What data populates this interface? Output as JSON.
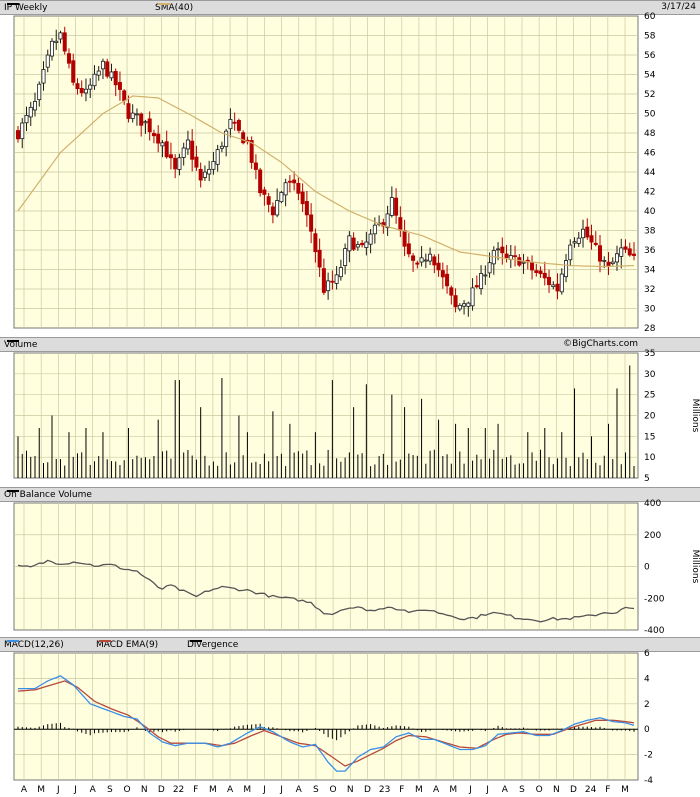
{
  "header": {
    "price_title": "IP Weekly",
    "sma_label": "SMA(40)",
    "date": "3/17/24",
    "volume_title": "Volume",
    "brand": "©BigCharts.com",
    "obv_title": "On Balance Volume",
    "macd_label": "MACD(12,26)",
    "macd_ema_label": "MACD EMA(9)",
    "divergence_label": "Divergence"
  },
  "colors": {
    "panel_bg": "#ffffe0",
    "grid": "#c9c9a0",
    "up_candle": "#1a1a1a",
    "down_candle": "#b30000",
    "sma": "#d2b06a",
    "volume_bar": "#000000",
    "obv_line": "#555555",
    "macd_line": "#3a8ee6",
    "macd_ema": "#b84a3a",
    "divergence": "#000000"
  },
  "chart_data": [
    {
      "type": "candlestick",
      "title": "IP Weekly",
      "overlay": "SMA(40)",
      "ylim": [
        28,
        60
      ],
      "yticks": [
        28,
        30,
        32,
        34,
        36,
        38,
        40,
        42,
        44,
        46,
        48,
        50,
        52,
        54,
        56,
        58,
        60
      ],
      "close_anchors": [
        [
          0,
          48
        ],
        [
          4,
          51
        ],
        [
          8,
          57
        ],
        [
          10,
          58
        ],
        [
          13,
          53
        ],
        [
          16,
          52
        ],
        [
          20,
          55
        ],
        [
          23,
          53
        ],
        [
          26,
          50
        ],
        [
          30,
          49
        ],
        [
          34,
          47
        ],
        [
          37,
          44
        ],
        [
          40,
          47
        ],
        [
          43,
          43
        ],
        [
          46,
          45
        ],
        [
          50,
          49
        ],
        [
          54,
          47
        ],
        [
          57,
          42
        ],
        [
          60,
          40
        ],
        [
          63,
          43
        ],
        [
          66,
          42
        ],
        [
          69,
          38
        ],
        [
          72,
          32
        ],
        [
          75,
          33
        ],
        [
          78,
          37
        ],
        [
          81,
          36
        ],
        [
          84,
          38
        ],
        [
          86,
          39
        ],
        [
          88,
          41
        ],
        [
          91,
          36
        ],
        [
          94,
          34
        ],
        [
          97,
          36
        ],
        [
          100,
          33
        ],
        [
          103,
          30
        ],
        [
          106,
          31
        ],
        [
          109,
          33
        ],
        [
          112,
          36
        ],
        [
          115,
          35
        ],
        [
          118,
          35
        ],
        [
          121,
          34
        ],
        [
          124,
          33
        ],
        [
          127,
          32
        ],
        [
          130,
          37
        ],
        [
          133,
          38
        ],
        [
          136,
          36
        ],
        [
          139,
          34
        ],
        [
          142,
          36
        ],
        [
          145,
          35
        ]
      ],
      "sma_anchors": [
        [
          0,
          40
        ],
        [
          10,
          46
        ],
        [
          20,
          50
        ],
        [
          27,
          51.8
        ],
        [
          33,
          51.6
        ],
        [
          40,
          50
        ],
        [
          48,
          48
        ],
        [
          55,
          47
        ],
        [
          62,
          45
        ],
        [
          70,
          42
        ],
        [
          78,
          40
        ],
        [
          86,
          38.5
        ],
        [
          95,
          37.5
        ],
        [
          104,
          35.8
        ],
        [
          112,
          35.3
        ],
        [
          120,
          34.8
        ],
        [
          130,
          34.4
        ],
        [
          138,
          34.3
        ],
        [
          145,
          34.4
        ]
      ]
    },
    {
      "type": "bar",
      "title": "Volume",
      "ylabel": "Millions",
      "ylim": [
        5,
        35
      ],
      "yticks": [
        5,
        10,
        15,
        20,
        25,
        30,
        35
      ],
      "base": 9,
      "spikes": [
        [
          0,
          15
        ],
        [
          5,
          17
        ],
        [
          8,
          20
        ],
        [
          12,
          16
        ],
        [
          16,
          17
        ],
        [
          20,
          16
        ],
        [
          26,
          17
        ],
        [
          33,
          19
        ],
        [
          37,
          28.5
        ],
        [
          38,
          28.5
        ],
        [
          43,
          22
        ],
        [
          48,
          29
        ],
        [
          52,
          20
        ],
        [
          54,
          16
        ],
        [
          60,
          21
        ],
        [
          64,
          18
        ],
        [
          70,
          16
        ],
        [
          74,
          28.5
        ],
        [
          79,
          22
        ],
        [
          82,
          27.5
        ],
        [
          88,
          25
        ],
        [
          91,
          22
        ],
        [
          95,
          24
        ],
        [
          99,
          19
        ],
        [
          103,
          18
        ],
        [
          106,
          17
        ],
        [
          110,
          17
        ],
        [
          113,
          18
        ],
        [
          120,
          16
        ],
        [
          124,
          17
        ],
        [
          128,
          16
        ],
        [
          131,
          26.5
        ],
        [
          135,
          15
        ],
        [
          139,
          18
        ],
        [
          141,
          26.5
        ],
        [
          144,
          32
        ]
      ]
    },
    {
      "type": "line",
      "title": "On Balance Volume",
      "ylabel": "Millions",
      "ylim": [
        -400,
        400
      ],
      "yticks": [
        -400,
        -200,
        0,
        200,
        400
      ],
      "anchors": [
        [
          0,
          0
        ],
        [
          3,
          -5
        ],
        [
          7,
          35
        ],
        [
          10,
          20
        ],
        [
          14,
          30
        ],
        [
          18,
          5
        ],
        [
          22,
          10
        ],
        [
          25,
          -15
        ],
        [
          28,
          -30
        ],
        [
          31,
          -90
        ],
        [
          33,
          -130
        ],
        [
          34,
          -140
        ],
        [
          36,
          -120
        ],
        [
          40,
          -170
        ],
        [
          42,
          -190
        ],
        [
          45,
          -150
        ],
        [
          48,
          -130
        ],
        [
          51,
          -140
        ],
        [
          54,
          -150
        ],
        [
          57,
          -170
        ],
        [
          60,
          -190
        ],
        [
          63,
          -200
        ],
        [
          66,
          -210
        ],
        [
          69,
          -230
        ],
        [
          72,
          -290
        ],
        [
          74,
          -300
        ],
        [
          77,
          -260
        ],
        [
          80,
          -260
        ],
        [
          84,
          -280
        ],
        [
          87,
          -250
        ],
        [
          90,
          -270
        ],
        [
          93,
          -290
        ],
        [
          96,
          -270
        ],
        [
          99,
          -290
        ],
        [
          102,
          -310
        ],
        [
          105,
          -330
        ],
        [
          108,
          -320
        ],
        [
          111,
          -290
        ],
        [
          114,
          -300
        ],
        [
          117,
          -320
        ],
        [
          120,
          -330
        ],
        [
          123,
          -340
        ],
        [
          126,
          -330
        ],
        [
          129,
          -330
        ],
        [
          132,
          -320
        ],
        [
          135,
          -310
        ],
        [
          138,
          -290
        ],
        [
          141,
          -290
        ],
        [
          143,
          -260
        ],
        [
          145,
          -270
        ]
      ]
    },
    {
      "type": "line",
      "title": "MACD(12,26)",
      "series": [
        {
          "name": "MACD(12,26)",
          "anchors": [
            [
              0,
              3.2
            ],
            [
              4,
              3.2
            ],
            [
              7,
              3.8
            ],
            [
              10,
              4.2
            ],
            [
              13,
              3.5
            ],
            [
              17,
              2
            ],
            [
              21,
              1.5
            ],
            [
              25,
              1
            ],
            [
              28,
              0.8
            ],
            [
              31,
              -0.3
            ],
            [
              34,
              -1
            ],
            [
              37,
              -1.3
            ],
            [
              40,
              -1.1
            ],
            [
              44,
              -1.1
            ],
            [
              47,
              -1.4
            ],
            [
              50,
              -1.1
            ],
            [
              54,
              -0.3
            ],
            [
              57,
              0.2
            ],
            [
              60,
              -0.2
            ],
            [
              64,
              -1
            ],
            [
              67,
              -1.4
            ],
            [
              70,
              -1.2
            ],
            [
              73,
              -2.6
            ],
            [
              75,
              -3.3
            ],
            [
              77,
              -3.3
            ],
            [
              80,
              -2.2
            ],
            [
              83,
              -1.6
            ],
            [
              86,
              -1.4
            ],
            [
              89,
              -0.6
            ],
            [
              92,
              -0.3
            ],
            [
              95,
              -0.8
            ],
            [
              98,
              -0.8
            ],
            [
              101,
              -1.2
            ],
            [
              104,
              -1.6
            ],
            [
              107,
              -1.6
            ],
            [
              110,
              -1.3
            ],
            [
              113,
              -0.4
            ],
            [
              116,
              -0.3
            ],
            [
              119,
              -0.2
            ],
            [
              122,
              -0.5
            ],
            [
              125,
              -0.5
            ],
            [
              128,
              -0.1
            ],
            [
              131,
              0.4
            ],
            [
              134,
              0.7
            ],
            [
              137,
              0.9
            ],
            [
              140,
              0.6
            ],
            [
              143,
              0.5
            ],
            [
              145,
              0.3
            ]
          ]
        },
        {
          "name": "MACD EMA(9)",
          "anchors": [
            [
              0,
              3
            ],
            [
              4,
              3.1
            ],
            [
              8,
              3.5
            ],
            [
              11,
              3.8
            ],
            [
              14,
              3.3
            ],
            [
              18,
              2.2
            ],
            [
              22,
              1.6
            ],
            [
              26,
              1.1
            ],
            [
              30,
              0.2
            ],
            [
              33,
              -0.6
            ],
            [
              36,
              -1.1
            ],
            [
              40,
              -1.1
            ],
            [
              44,
              -1.1
            ],
            [
              48,
              -1.3
            ],
            [
              51,
              -1.1
            ],
            [
              55,
              -0.5
            ],
            [
              58,
              -0.1
            ],
            [
              62,
              -0.6
            ],
            [
              66,
              -1.1
            ],
            [
              70,
              -1.3
            ],
            [
              74,
              -2.2
            ],
            [
              77,
              -2.9
            ],
            [
              80,
              -2.5
            ],
            [
              83,
              -2
            ],
            [
              86,
              -1.5
            ],
            [
              89,
              -0.9
            ],
            [
              92,
              -0.5
            ],
            [
              96,
              -0.6
            ],
            [
              100,
              -1
            ],
            [
              104,
              -1.4
            ],
            [
              108,
              -1.5
            ],
            [
              112,
              -0.8
            ],
            [
              115,
              -0.4
            ],
            [
              118,
              -0.3
            ],
            [
              122,
              -0.4
            ],
            [
              126,
              -0.4
            ],
            [
              130,
              0.1
            ],
            [
              133,
              0.4
            ],
            [
              136,
              0.7
            ],
            [
              140,
              0.7
            ],
            [
              143,
              0.6
            ],
            [
              145,
              0.5
            ]
          ]
        }
      ],
      "divergence": "MACD minus EMA(9)",
      "ylim": [
        -4,
        6
      ],
      "yticks": [
        -4,
        -2,
        0,
        2,
        4,
        6
      ]
    }
  ],
  "x_axis": {
    "weeks": 146,
    "labels": [
      {
        "text": "A",
        "week": 0
      },
      {
        "text": "M",
        "week": 4
      },
      {
        "text": "J",
        "week": 9
      },
      {
        "text": "J",
        "week": 13
      },
      {
        "text": "A",
        "week": 17
      },
      {
        "text": "S",
        "week": 22
      },
      {
        "text": "O",
        "week": 26
      },
      {
        "text": "N",
        "week": 30
      },
      {
        "text": "D",
        "week": 35
      },
      {
        "text": "22",
        "week": 39
      },
      {
        "text": "F",
        "week": 43
      },
      {
        "text": "M",
        "week": 48
      },
      {
        "text": "A",
        "week": 52
      },
      {
        "text": "M",
        "week": 56
      },
      {
        "text": "J",
        "week": 61
      },
      {
        "text": "J",
        "week": 65
      },
      {
        "text": "A",
        "week": 69
      },
      {
        "text": "S",
        "week": 74
      },
      {
        "text": "O",
        "week": 78
      },
      {
        "text": "N",
        "week": 82
      },
      {
        "text": "D",
        "week": 87
      },
      {
        "text": "23",
        "week": 91
      },
      {
        "text": "F",
        "week": 95
      },
      {
        "text": "M",
        "week": 99
      },
      {
        "text": "A",
        "week": 104
      },
      {
        "text": "M",
        "week": 108
      },
      {
        "text": "J",
        "week": 112
      },
      {
        "text": "J",
        "week": 117
      },
      {
        "text": "A",
        "week": 121
      },
      {
        "text": "S",
        "week": 125
      },
      {
        "text": "O",
        "week": 130
      },
      {
        "text": "N",
        "week": 134
      },
      {
        "text": "D",
        "week": 138
      },
      {
        "text": "24",
        "week": 143
      },
      {
        "text": "F",
        "week": 147
      },
      {
        "text": "M",
        "week": 151
      }
    ]
  }
}
